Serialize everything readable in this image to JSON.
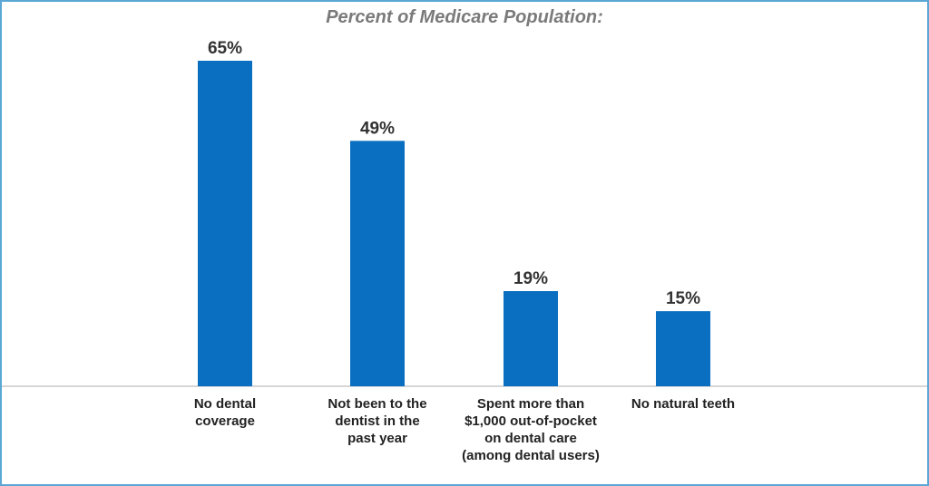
{
  "chart_data": {
    "type": "bar",
    "title": "Percent of Medicare Population:",
    "categories": [
      [
        "No dental",
        "coverage"
      ],
      [
        "Not been to the",
        "dentist in the",
        "past year"
      ],
      [
        "Spent more than",
        "$1,000 out-of-pocket",
        "on dental care",
        "(among dental users)"
      ],
      [
        "No natural teeth"
      ]
    ],
    "values": [
      65,
      49,
      19,
      15
    ],
    "value_labels": [
      "65%",
      "49%",
      "19%",
      "15%"
    ],
    "ylim": [
      0,
      65
    ],
    "grid": false,
    "legend": "none",
    "bar_color": "#0a6fc1",
    "border_color": "#5aa7d6"
  }
}
